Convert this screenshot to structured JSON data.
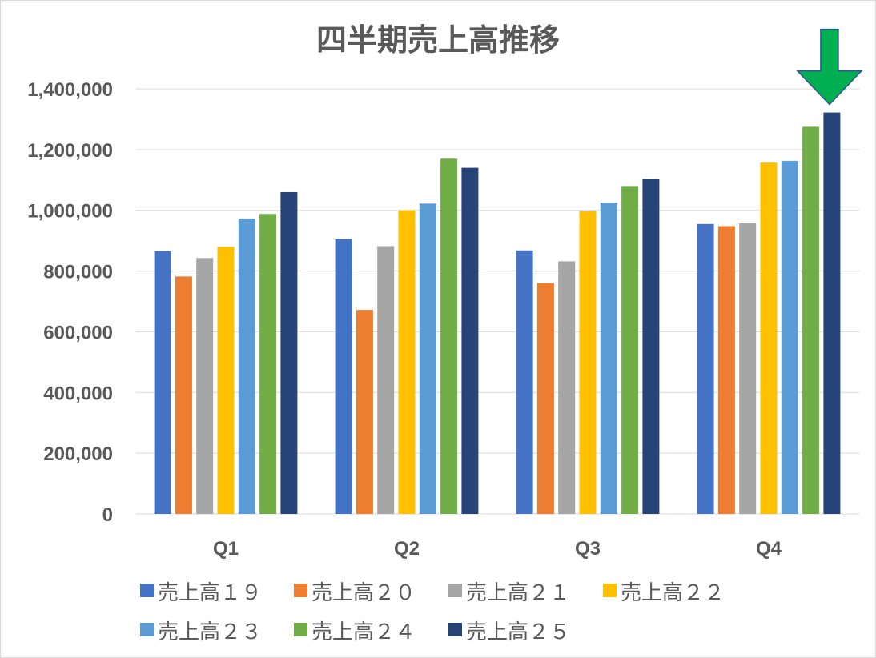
{
  "chart_data": {
    "type": "bar",
    "title": "四半期売上高推移",
    "categories": [
      "Q1",
      "Q2",
      "Q3",
      "Q4"
    ],
    "ylim": [
      0,
      1400000
    ],
    "yticks": [
      "0",
      "200,000",
      "400,000",
      "600,000",
      "800,000",
      "1,000,000",
      "1,200,000",
      "1,400,000"
    ],
    "ytick_values": [
      0,
      200000,
      400000,
      600000,
      800000,
      1000000,
      1200000,
      1400000
    ],
    "grid": true,
    "legend_position": "bottom",
    "series": [
      {
        "name": "売上高１９",
        "color": "#4472c4",
        "values": [
          865000,
          905000,
          868000,
          955000
        ]
      },
      {
        "name": "売上高２０",
        "color": "#ed7d31",
        "values": [
          782000,
          672000,
          760000,
          948000
        ]
      },
      {
        "name": "売上高２１",
        "color": "#a5a5a5",
        "values": [
          843000,
          882000,
          832000,
          957000
        ]
      },
      {
        "name": "売上高２２",
        "color": "#ffc000",
        "values": [
          880000,
          1000000,
          997000,
          1157000
        ]
      },
      {
        "name": "売上高２３",
        "color": "#5b9bd5",
        "values": [
          973000,
          1022000,
          1025000,
          1163000
        ]
      },
      {
        "name": "売上高２４",
        "color": "#70ad47",
        "values": [
          988000,
          1170000,
          1080000,
          1275000
        ]
      },
      {
        "name": "売上高２５",
        "color": "#264478",
        "values": [
          1060000,
          1140000,
          1103000,
          1322000
        ]
      }
    ],
    "annotation": {
      "type": "down-arrow",
      "target_category": "Q4",
      "target_series": "売上高２５",
      "color": "#00b050"
    }
  }
}
